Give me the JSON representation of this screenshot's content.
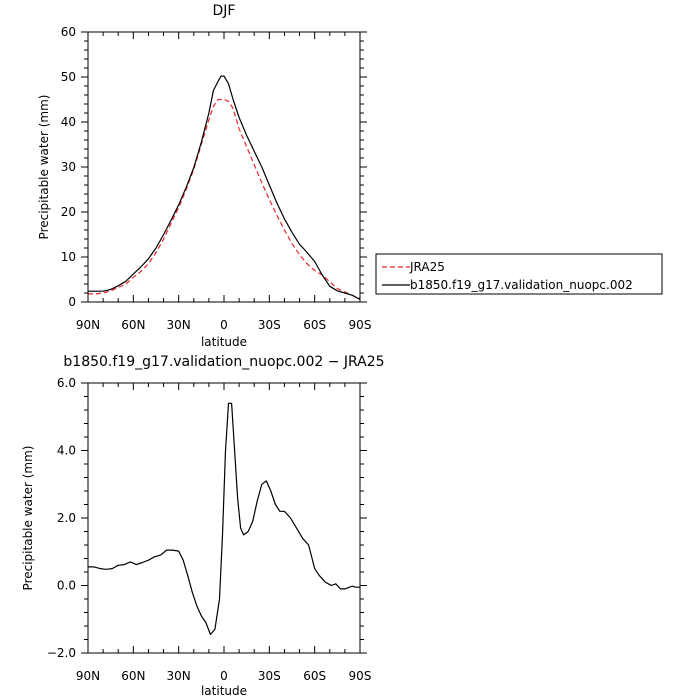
{
  "chart_data": [
    {
      "type": "line",
      "title": "DJF",
      "xlabel": "latitude",
      "ylabel": "Precipitable water (mm)",
      "xlim": [
        90,
        -90
      ],
      "ylim": [
        0,
        60
      ],
      "x_ticks": [
        90,
        60,
        30,
        0,
        -30,
        -60,
        -90
      ],
      "x_tick_labels": [
        "90N",
        "60N",
        "30N",
        "0",
        "30S",
        "60S",
        "90S"
      ],
      "y_ticks": [
        0,
        10,
        20,
        30,
        40,
        50,
        60
      ],
      "y_tick_labels": [
        "0",
        "10",
        "20",
        "30",
        "40",
        "50",
        "60"
      ],
      "legend_position": "right",
      "series": [
        {
          "name": "JRA25",
          "color": "#e8262d",
          "dash": "dashed",
          "x": [
            90,
            85,
            80,
            75,
            70,
            65,
            60,
            55,
            50,
            45,
            40,
            35,
            30,
            25,
            20,
            15,
            10,
            7,
            4,
            2,
            0,
            -3,
            -6,
            -10,
            -15,
            -20,
            -25,
            -30,
            -35,
            -40,
            -45,
            -50,
            -55,
            -60,
            -65,
            -70,
            -75,
            -80,
            -85,
            -88,
            -90
          ],
          "y": [
            1.8,
            1.8,
            2.0,
            2.5,
            3.2,
            4.0,
            5.5,
            6.8,
            8.5,
            11.0,
            14.0,
            17.5,
            21.0,
            25.0,
            29.5,
            35.0,
            40.5,
            43.5,
            45.0,
            45.0,
            45.0,
            44.6,
            43.0,
            38.5,
            34.5,
            30.5,
            26.5,
            22.8,
            19.3,
            16.0,
            13.0,
            10.5,
            8.5,
            7.0,
            6.0,
            4.5,
            3.0,
            2.2,
            1.5,
            1.0,
            0.8
          ]
        },
        {
          "name": "b1850.f19_g17.validation_nuopc.002",
          "color": "#000000",
          "dash": "solid",
          "x": [
            90,
            85,
            80,
            75,
            70,
            65,
            60,
            55,
            50,
            45,
            40,
            35,
            30,
            25,
            20,
            15,
            10,
            7,
            4,
            2,
            0,
            -3,
            -6,
            -10,
            -15,
            -20,
            -25,
            -30,
            -35,
            -40,
            -45,
            -50,
            -55,
            -60,
            -65,
            -70,
            -75,
            -80,
            -85,
            -88,
            -90
          ],
          "y": [
            2.4,
            2.4,
            2.4,
            2.8,
            3.6,
            4.6,
            6.2,
            7.8,
            9.6,
            12.0,
            15.0,
            18.2,
            21.6,
            25.5,
            29.9,
            35.5,
            42.0,
            47.0,
            49.0,
            50.2,
            50.2,
            48.5,
            45.0,
            41.0,
            37.0,
            33.5,
            30.0,
            26.0,
            22.0,
            18.5,
            15.5,
            12.8,
            11.0,
            9.0,
            6.0,
            3.5,
            2.5,
            2.0,
            1.5,
            0.9,
            0.6
          ]
        }
      ]
    },
    {
      "type": "line",
      "title": "b1850.f19_g17.validation_nuopc.002 − JRA25",
      "xlabel": "latitude",
      "ylabel": "Precipitable water (mm)",
      "xlim": [
        90,
        -90
      ],
      "ylim": [
        -2.0,
        6.0
      ],
      "x_ticks": [
        90,
        60,
        30,
        0,
        -30,
        -60,
        -90
      ],
      "x_tick_labels": [
        "90N",
        "60N",
        "30N",
        "0",
        "30S",
        "60S",
        "90S"
      ],
      "y_ticks": [
        -2.0,
        0.0,
        2.0,
        4.0,
        6.0
      ],
      "y_tick_labels": [
        "−2.0",
        "0.0",
        "2.0",
        "4.0",
        "6.0"
      ],
      "series": [
        {
          "color": "#000000",
          "x": [
            90,
            86,
            82,
            78,
            74,
            70,
            66,
            62,
            58,
            54,
            50,
            46,
            42,
            38,
            34,
            30,
            27,
            24,
            21,
            18,
            15,
            12,
            9,
            6,
            3,
            1,
            -1,
            -3,
            -5,
            -7,
            -9,
            -11,
            -13,
            -16,
            -19,
            -22,
            -25,
            -28,
            -31,
            -34,
            -37,
            -40,
            -44,
            -48,
            -52,
            -56,
            -60,
            -63,
            -65,
            -67,
            -69,
            -71,
            -74,
            -77,
            -80,
            -83,
            -85,
            -87,
            -90
          ],
          "y": [
            0.55,
            0.55,
            0.5,
            0.48,
            0.5,
            0.6,
            0.62,
            0.7,
            0.62,
            0.68,
            0.75,
            0.85,
            0.9,
            1.05,
            1.05,
            1.02,
            0.75,
            0.3,
            -0.2,
            -0.6,
            -0.9,
            -1.1,
            -1.45,
            -1.3,
            -0.4,
            1.5,
            4.0,
            5.4,
            5.4,
            4.0,
            2.6,
            1.7,
            1.5,
            1.6,
            1.9,
            2.5,
            3.0,
            3.1,
            2.8,
            2.4,
            2.2,
            2.2,
            2.0,
            1.7,
            1.4,
            1.2,
            0.5,
            0.3,
            0.2,
            0.1,
            0.05,
            0.0,
            0.05,
            -0.1,
            -0.1,
            -0.05,
            -0.02,
            -0.05,
            -0.05
          ]
        }
      ]
    }
  ]
}
